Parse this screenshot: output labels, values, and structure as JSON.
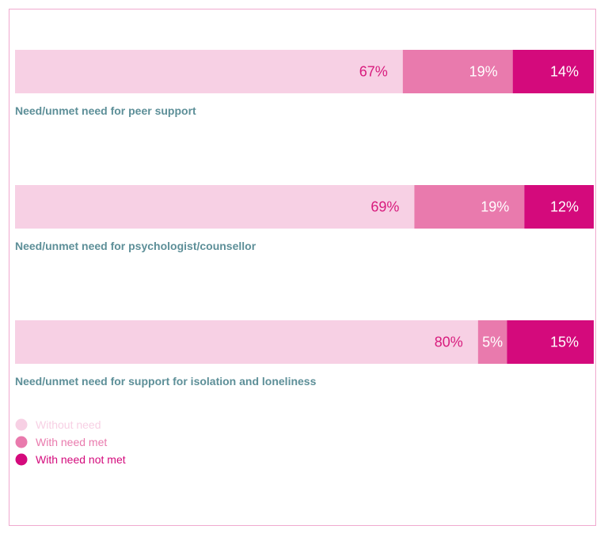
{
  "chart_data": {
    "type": "bar",
    "orientation": "horizontal",
    "stacked": true,
    "categories": [
      "Need/unmet need for peer support",
      "Need/unmet need for psychologist/counsellor",
      "Need/unmet need for support for isolation and loneliness"
    ],
    "series": [
      {
        "name": "Without need",
        "values": [
          67,
          69,
          80
        ],
        "labels": [
          "67%",
          "69%",
          "80%"
        ],
        "color": "#f7d0e4",
        "label_color": "#d81b7d"
      },
      {
        "name": "With need met",
        "values": [
          19,
          19,
          5
        ],
        "labels": [
          "19%",
          "19%",
          "5%"
        ],
        "color": "#e97aad",
        "label_color": "#ffffff"
      },
      {
        "name": "With need not met",
        "values": [
          14,
          12,
          15
        ],
        "labels": [
          "14%",
          "12%",
          "15%"
        ],
        "color": "#d40a7c",
        "label_color": "#ffffff"
      }
    ],
    "xlim": [
      0,
      100
    ],
    "grid": false,
    "legend_position": "bottom-left"
  },
  "colors": {
    "category_label": "#5d8f98",
    "frame_border": "#f0a9cf"
  }
}
